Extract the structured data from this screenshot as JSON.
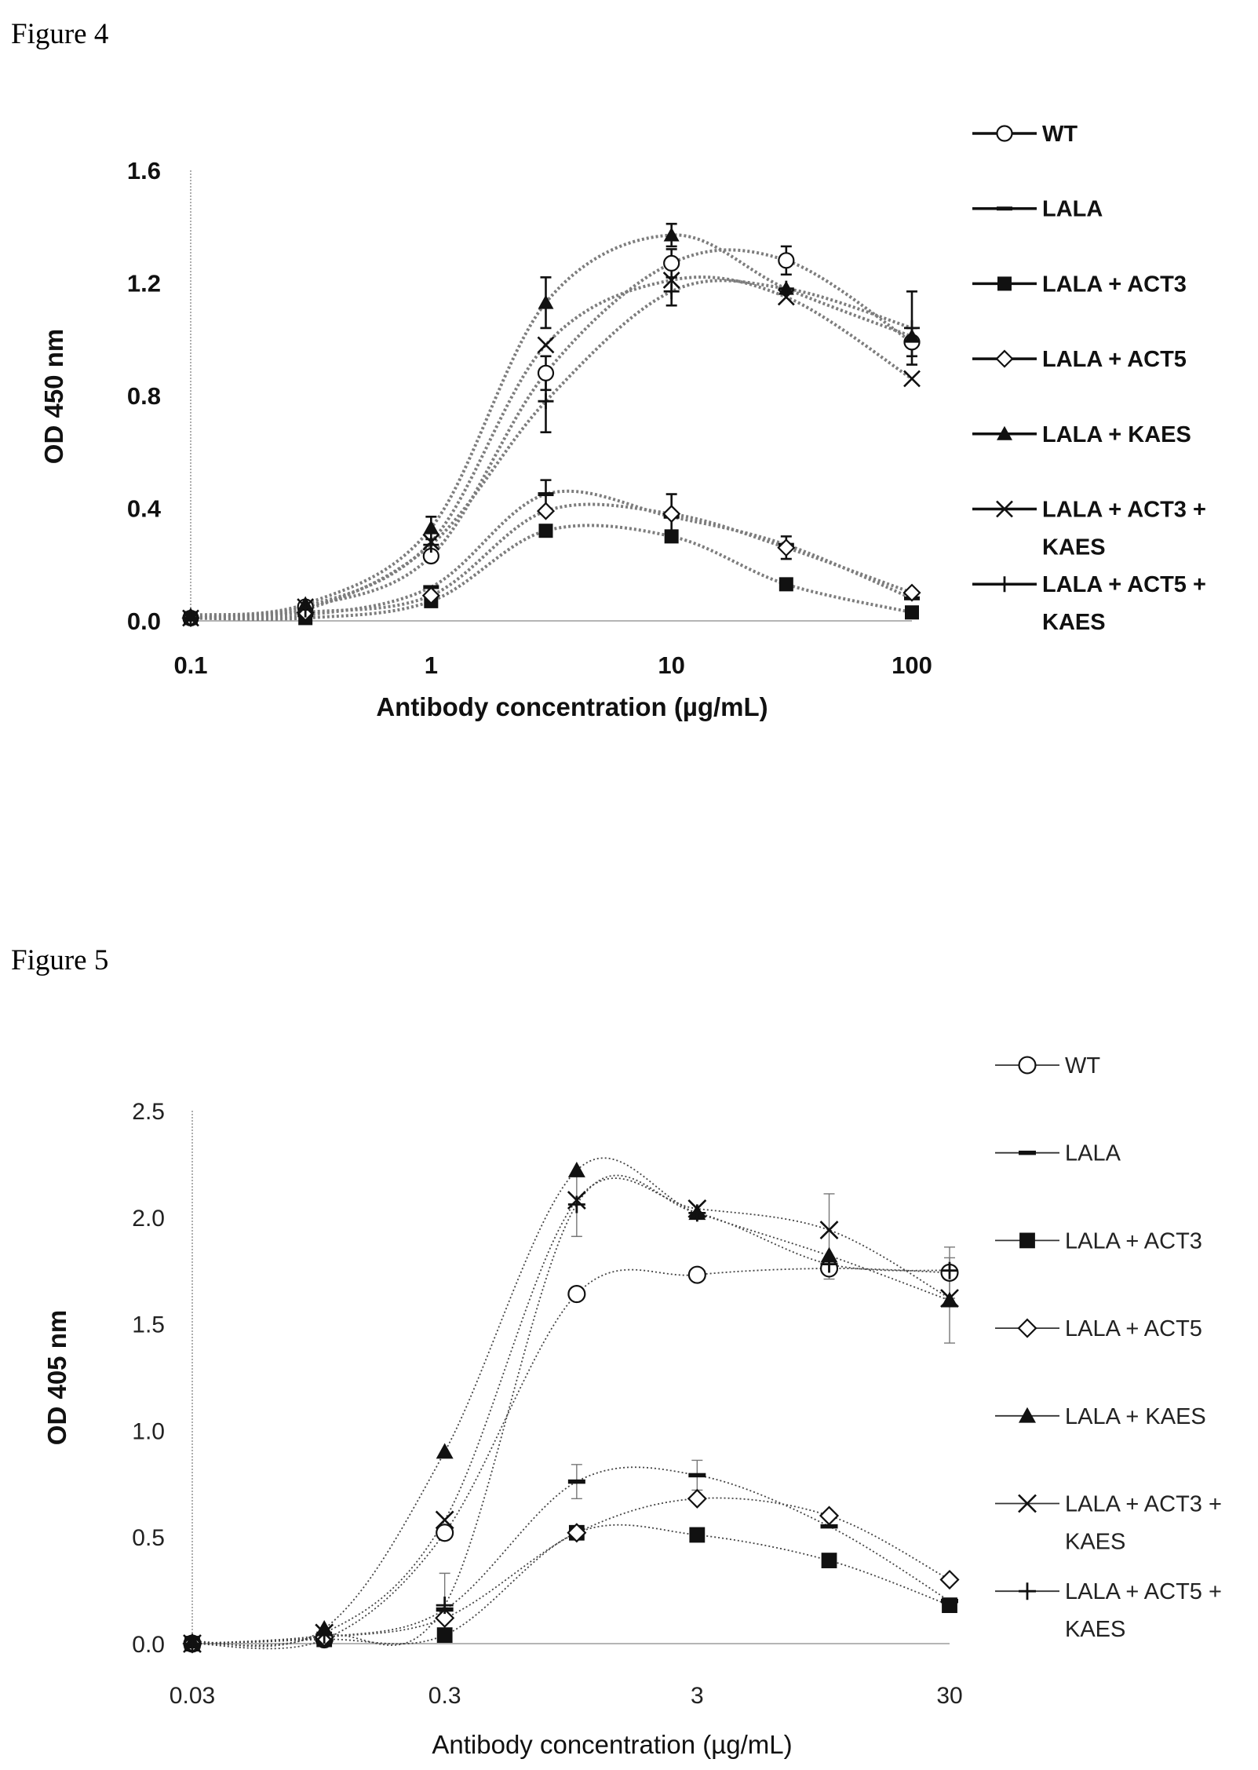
{
  "figures": [
    {
      "label": "Figure 4"
    },
    {
      "label": "Figure 5"
    }
  ],
  "chart_data": [
    {
      "type": "line",
      "xlabel": "Antibody concentration (µg/mL)",
      "ylabel": "OD 450 nm",
      "x_scale": "log",
      "xlim": [
        0.1,
        100
      ],
      "ylim": [
        0,
        1.6
      ],
      "x_ticks": [
        "0.1",
        "1",
        "10",
        "100"
      ],
      "y_ticks": [
        "0.0",
        "0.4",
        "0.8",
        "1.2",
        "1.6"
      ],
      "grid": false,
      "legend_position": "right",
      "x": [
        0.1,
        0.3,
        1,
        3,
        10,
        30,
        100
      ],
      "series": [
        {
          "name": "WT",
          "marker": "open-circle",
          "values": [
            0.01,
            0.05,
            0.23,
            0.88,
            1.27,
            1.28,
            0.99
          ],
          "errors": [
            null,
            null,
            null,
            0.06,
            0.05,
            0.05,
            0.05
          ]
        },
        {
          "name": "LALA",
          "marker": "dash",
          "values": [
            0.01,
            0.02,
            0.12,
            0.45,
            0.37,
            0.27,
            0.08
          ],
          "errors": [
            null,
            null,
            null,
            0.05,
            null,
            null,
            null
          ]
        },
        {
          "name": "LALA + ACT3",
          "marker": "filled-square",
          "values": [
            0.01,
            0.01,
            0.07,
            0.32,
            0.3,
            0.13,
            0.03
          ],
          "errors": [
            null,
            null,
            null,
            null,
            null,
            null,
            null
          ]
        },
        {
          "name": "LALA + ACT5",
          "marker": "open-diamond",
          "values": [
            0.01,
            0.03,
            0.09,
            0.39,
            0.38,
            0.26,
            0.1
          ],
          "errors": [
            null,
            null,
            null,
            null,
            0.07,
            0.04,
            null
          ]
        },
        {
          "name": "LALA + KAES",
          "marker": "filled-triangle",
          "values": [
            0.02,
            0.06,
            0.33,
            1.13,
            1.37,
            1.18,
            1.01
          ],
          "errors": [
            null,
            null,
            0.04,
            0.09,
            0.04,
            null,
            null
          ]
        },
        {
          "name": "LALA + ACT3 + KAES",
          "marker": "x",
          "values": [
            0.01,
            0.05,
            0.28,
            0.98,
            1.21,
            1.15,
            0.86
          ],
          "errors": [
            null,
            null,
            null,
            null,
            null,
            null,
            null
          ]
        },
        {
          "name": "LALA + ACT5 + KAES",
          "marker": "plus",
          "values": [
            0.01,
            0.04,
            0.27,
            0.78,
            1.17,
            1.18,
            1.04
          ],
          "errors": [
            null,
            null,
            null,
            0.11,
            0.05,
            null,
            0.13
          ]
        }
      ]
    },
    {
      "type": "line",
      "xlabel": "Antibody concentration (µg/mL)",
      "ylabel": "OD 405 nm",
      "x_scale": "log",
      "xlim": [
        0.03,
        30
      ],
      "ylim": [
        0,
        2.5
      ],
      "x_ticks": [
        "0.03",
        "0.3",
        "3",
        "30"
      ],
      "y_ticks": [
        "0.0",
        "0.5",
        "1.0",
        "1.5",
        "2.0",
        "2.5"
      ],
      "grid": false,
      "legend_position": "right",
      "x": [
        0.03,
        0.1,
        0.3,
        1,
        3,
        10,
        30
      ],
      "series": [
        {
          "name": "WT",
          "marker": "open-circle",
          "values": [
            0.0,
            0.02,
            0.52,
            1.64,
            1.73,
            1.76,
            1.74
          ],
          "errors": [
            null,
            null,
            null,
            null,
            null,
            0.05,
            0.12
          ]
        },
        {
          "name": "LALA",
          "marker": "dash",
          "values": [
            0.0,
            0.03,
            0.16,
            0.76,
            0.79,
            0.55,
            0.2
          ],
          "errors": [
            null,
            null,
            null,
            0.08,
            0.07,
            null,
            null
          ]
        },
        {
          "name": "LALA + ACT3",
          "marker": "filled-square",
          "values": [
            0.0,
            0.02,
            0.04,
            0.52,
            0.51,
            0.39,
            0.18
          ],
          "errors": [
            null,
            null,
            null,
            null,
            null,
            null,
            null
          ]
        },
        {
          "name": "LALA + ACT5",
          "marker": "open-diamond",
          "values": [
            0.0,
            0.03,
            0.12,
            0.52,
            0.68,
            0.6,
            0.3
          ],
          "errors": [
            null,
            null,
            null,
            null,
            null,
            null,
            null
          ]
        },
        {
          "name": "LALA + KAES",
          "marker": "filled-triangle",
          "values": [
            0.01,
            0.07,
            0.9,
            2.22,
            2.02,
            1.82,
            1.61
          ],
          "errors": [
            null,
            null,
            null,
            null,
            null,
            null,
            0.2
          ]
        },
        {
          "name": "LALA + ACT3 + KAES",
          "marker": "x",
          "values": [
            0.0,
            0.05,
            0.58,
            2.08,
            2.04,
            1.94,
            1.62
          ],
          "errors": [
            null,
            null,
            null,
            null,
            null,
            0.17,
            null
          ]
        },
        {
          "name": "LALA + ACT5 + KAES",
          "marker": "plus",
          "values": [
            0.0,
            0.04,
            0.18,
            2.06,
            2.02,
            1.78,
            1.75
          ],
          "errors": [
            null,
            null,
            0.15,
            0.15,
            null,
            null,
            null
          ]
        }
      ]
    }
  ]
}
